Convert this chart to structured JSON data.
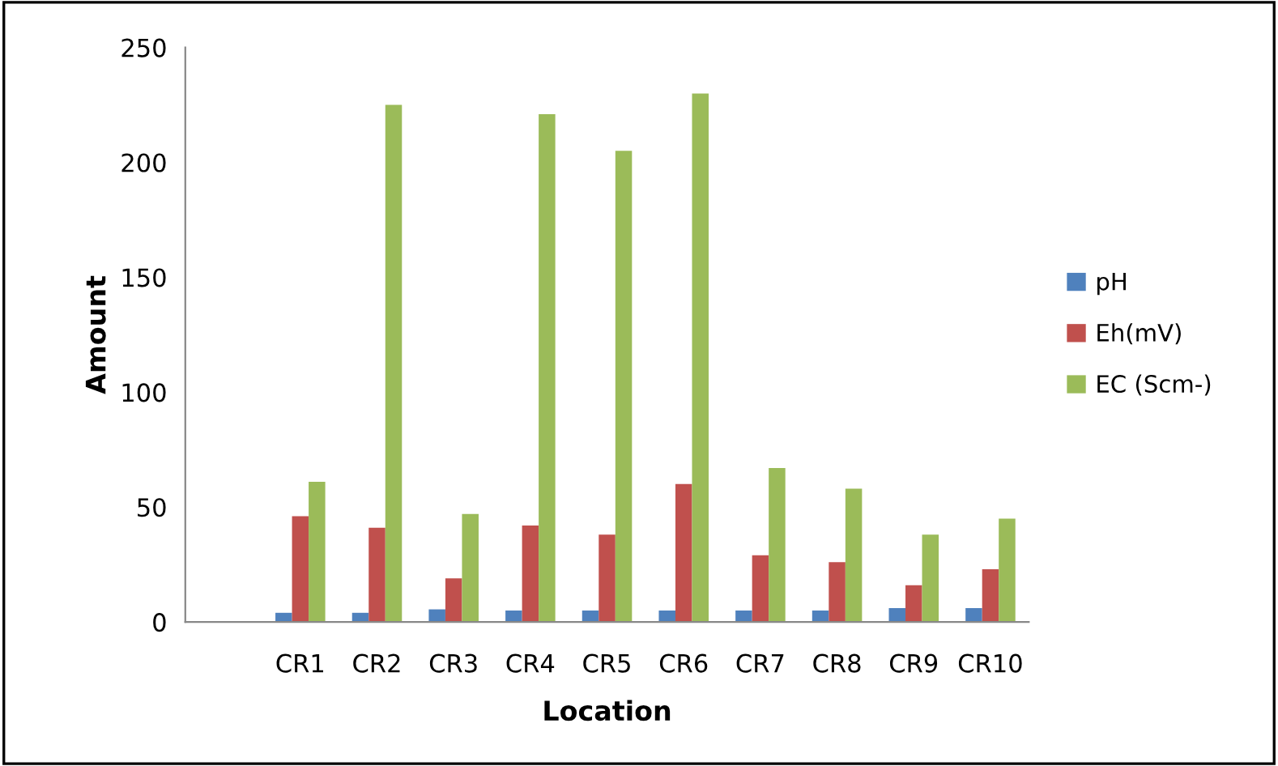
{
  "chart_data": {
    "type": "bar",
    "xlabel": "Location",
    "ylabel": "Amount",
    "categories": [
      null,
      "CR1",
      "CR2",
      "CR3",
      "CR4",
      "CR5",
      "CR6",
      "CR7",
      "CR8",
      "CR9",
      "CR10"
    ],
    "series": [
      {
        "name": "pH",
        "color": "#4f81bd",
        "values": [
          null,
          4,
          4,
          5.5,
          5,
          5,
          5,
          5,
          5,
          6,
          6
        ]
      },
      {
        "name": "Eh(mV)",
        "color": "#c0504d",
        "values": [
          null,
          46,
          41,
          19,
          42,
          38,
          60,
          29,
          26,
          16,
          23
        ]
      },
      {
        "name": "EC (Scm-)",
        "color": "#9bbb59",
        "values": [
          null,
          61,
          225,
          47,
          221,
          205,
          230,
          67,
          58,
          38,
          45
        ]
      }
    ],
    "ylim": [
      0,
      250
    ],
    "yticks": [
      0,
      50,
      100,
      150,
      200,
      250
    ],
    "grid": false,
    "legend": "right"
  }
}
